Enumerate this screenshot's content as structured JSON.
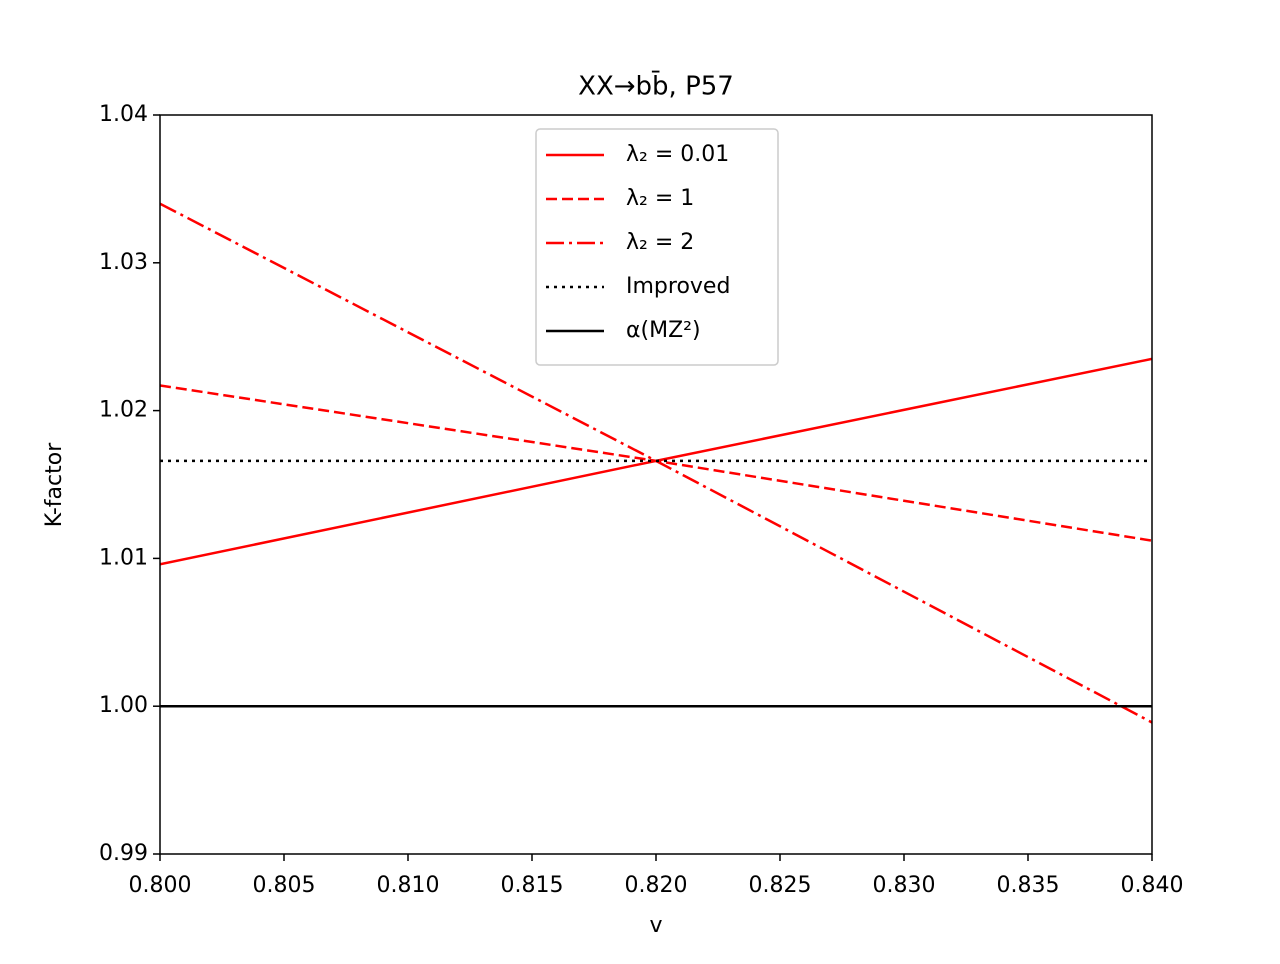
{
  "chart_data": {
    "type": "line",
    "title": "XX→bb̄, P57",
    "x_label": "v",
    "y_label": "K-factor",
    "x": [
      0.8,
      0.82,
      0.84
    ],
    "series": [
      {
        "name": "λ₂ = 0.01",
        "color": "#ff0000",
        "linestyle": "solid",
        "values": [
          1.0096,
          1.0166,
          1.0235
        ]
      },
      {
        "name": "λ₂ = 1",
        "color": "#ff0000",
        "linestyle": "dashed",
        "values": [
          1.0217,
          1.0166,
          1.0112
        ]
      },
      {
        "name": "λ₂ = 2",
        "color": "#ff0000",
        "linestyle": "dashdot",
        "values": [
          1.034,
          1.0166,
          0.9989
        ]
      },
      {
        "name": "Improved",
        "color": "#000000",
        "linestyle": "dotted",
        "values": [
          1.0166,
          1.0166,
          1.0166
        ]
      },
      {
        "name": "α(MZ²)",
        "color": "#000000",
        "linestyle": "solid",
        "values": [
          1.0,
          1.0,
          1.0
        ]
      }
    ],
    "xlim": [
      0.8,
      0.84
    ],
    "xticks": [
      {
        "value": 0.8,
        "label": "0.800"
      },
      {
        "value": 0.805,
        "label": "0.805"
      },
      {
        "value": 0.81,
        "label": "0.810"
      },
      {
        "value": 0.815,
        "label": "0.815"
      },
      {
        "value": 0.82,
        "label": "0.820"
      },
      {
        "value": 0.825,
        "label": "0.825"
      },
      {
        "value": 0.83,
        "label": "0.830"
      },
      {
        "value": 0.835,
        "label": "0.835"
      },
      {
        "value": 0.84,
        "label": "0.840"
      }
    ],
    "ylim": [
      0.99,
      1.04
    ],
    "yticks": [
      0.99,
      {
        "value": 1.0,
        "label": "1.00"
      },
      1.01,
      1.02,
      1.03,
      1.04
    ],
    "legend": "upper center",
    "grid": false
  }
}
